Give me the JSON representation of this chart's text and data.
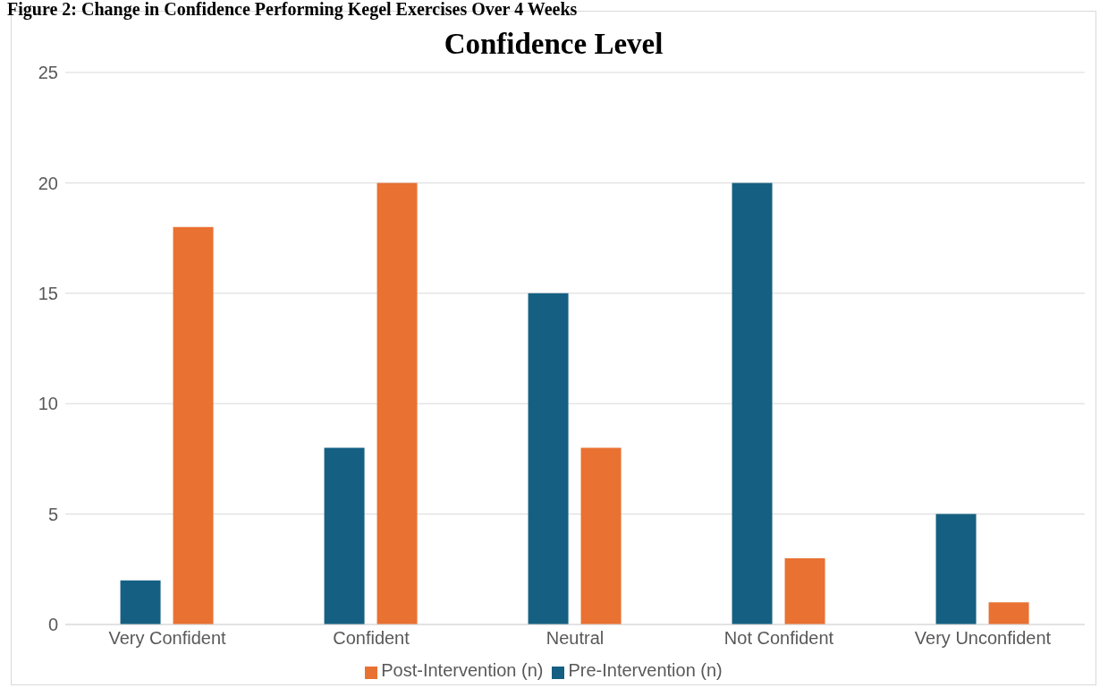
{
  "chart_data": {
    "type": "bar",
    "title": "Figure 2: Change in Confidence Performing Kegel Exercises Over 4 Weeks",
    "subtitle": "Confidence Level",
    "categories": [
      "Very Confident",
      "Confident",
      "Neutral",
      "Not Confident",
      "Very Unconfident"
    ],
    "series": [
      {
        "name": "Pre-Intervention (n)",
        "color": "#156082",
        "values": [
          2,
          8,
          15,
          20,
          5
        ]
      },
      {
        "name": "Post-Intervention (n)",
        "color": "#e97132",
        "values": [
          18,
          20,
          8,
          3,
          1
        ]
      }
    ],
    "ylim": [
      0,
      25
    ],
    "yticks": [
      0,
      5,
      10,
      15,
      20,
      25
    ],
    "grid": "y",
    "legend": "bottom"
  }
}
